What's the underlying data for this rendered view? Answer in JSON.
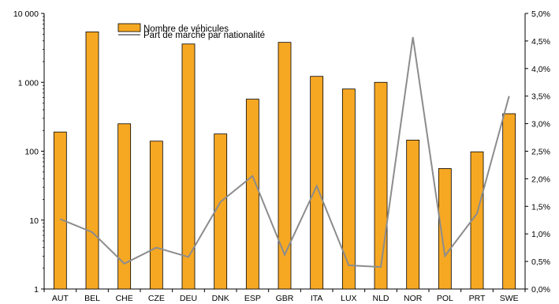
{
  "chart_data": {
    "type": "bar",
    "categories": [
      "AUT",
      "BEL",
      "CHE",
      "CZE",
      "DEU",
      "DNK",
      "ESP",
      "GBR",
      "ITA",
      "LUX",
      "NLD",
      "NOR",
      "POL",
      "PRT",
      "SWE"
    ],
    "series": [
      {
        "name": "Nombre de véhicules",
        "type": "bar",
        "axis": "left",
        "color": "#F7A823",
        "values": [
          190,
          5400,
          250,
          140,
          3600,
          178,
          570,
          3800,
          1220,
          800,
          1000,
          145,
          56,
          98,
          350
        ]
      },
      {
        "name": "Part de marché par nationalité",
        "type": "line",
        "axis": "right",
        "color": "#8C8C8C",
        "values": [
          1.27,
          1.03,
          0.46,
          0.75,
          0.58,
          1.58,
          2.05,
          0.62,
          1.87,
          0.43,
          0.4,
          4.57,
          0.6,
          1.37,
          3.5
        ]
      }
    ],
    "y_left": {
      "scale": "log",
      "range": [
        1,
        10000
      ],
      "ticks": [
        1,
        10,
        100,
        1000,
        10000
      ],
      "tick_labels": [
        "1",
        "10",
        "100",
        "1 000",
        "10 000"
      ]
    },
    "y_right": {
      "scale": "linear",
      "range": [
        0,
        5
      ],
      "ticks": [
        0,
        0.5,
        1,
        1.5,
        2,
        2.5,
        3,
        3.5,
        4,
        4.5,
        5
      ],
      "tick_labels": [
        "0,0%",
        "0,5%",
        "1,0%",
        "1,5%",
        "2,0%",
        "2,5%",
        "3,0%",
        "3,5%",
        "4,0%",
        "4,5%",
        "5,0%"
      ]
    },
    "title": "",
    "xlabel": "",
    "ylabel": "",
    "grid": false,
    "legend_position": "top-left"
  }
}
